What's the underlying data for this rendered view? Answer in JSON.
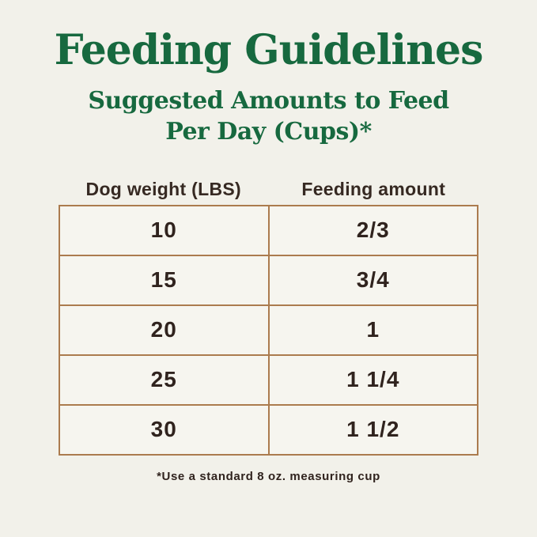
{
  "page": {
    "title": "Feeding Guidelines",
    "subtitle_line1": "Suggested Amounts to Feed",
    "subtitle_line2": "Per Day (Cups)*",
    "footnote": "*Use a standard 8 oz. measuring cup"
  },
  "colors": {
    "background": "#f2f1ea",
    "heading_green": "#17693f",
    "table_border_tan": "#ab7b4e",
    "cell_background": "#f6f5ef",
    "body_text_dark": "#30231e"
  },
  "table": {
    "headers": [
      "Dog weight (LBS)",
      "Feeding amount"
    ],
    "rows": [
      {
        "weight": "10",
        "amount": "2/3"
      },
      {
        "weight": "15",
        "amount": "3/4"
      },
      {
        "weight": "20",
        "amount": "1"
      },
      {
        "weight": "25",
        "amount": "1 1/4"
      },
      {
        "weight": "30",
        "amount": "1 1/2"
      }
    ]
  },
  "chart_data": {
    "type": "table",
    "title": "Feeding Guidelines",
    "subtitle": "Suggested Amounts to Feed Per Day (Cups)*",
    "columns": [
      "Dog weight (LBS)",
      "Feeding amount"
    ],
    "rows": [
      [
        "10",
        "2/3"
      ],
      [
        "15",
        "3/4"
      ],
      [
        "20",
        "1"
      ],
      [
        "25",
        "1 1/4"
      ],
      [
        "30",
        "1 1/2"
      ]
    ],
    "footnote": "*Use a standard 8 oz. measuring cup"
  }
}
